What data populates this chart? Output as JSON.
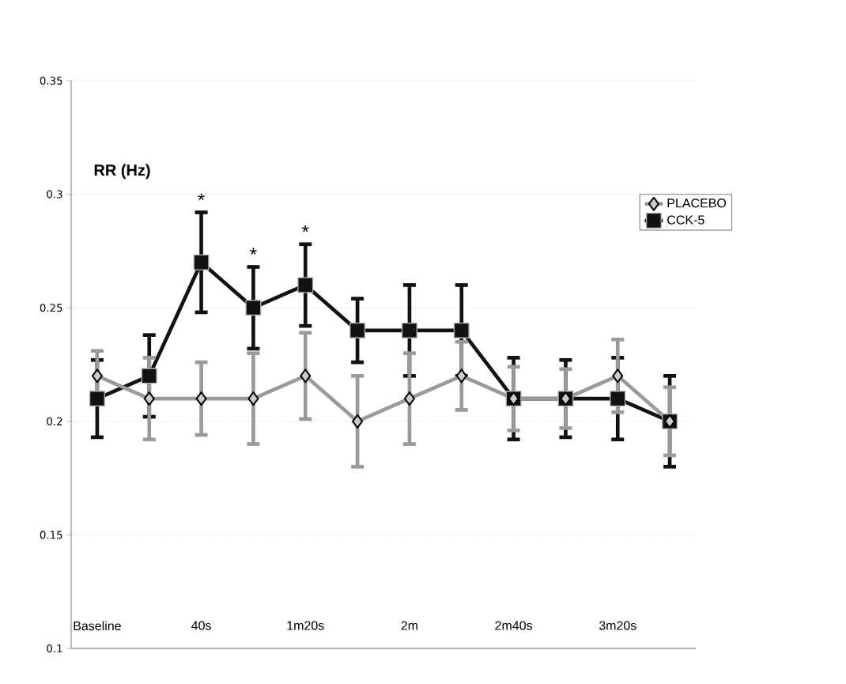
{
  "chart_data": {
    "type": "line",
    "ylabel": "RR (Hz)",
    "categories": [
      "Baseline",
      null,
      "40s",
      null,
      "1m20s",
      null,
      "2m",
      null,
      "2m40s",
      null,
      "3m20s",
      null
    ],
    "series": [
      {
        "name": "PLACEBO",
        "color": "#9a9a9a",
        "marker": "diamond",
        "values": [
          0.22,
          0.21,
          0.21,
          0.21,
          0.22,
          0.2,
          0.21,
          0.22,
          0.21,
          0.21,
          0.22,
          0.2
        ],
        "errors": [
          0.011,
          0.018,
          0.016,
          0.02,
          0.019,
          0.02,
          0.02,
          0.015,
          0.014,
          0.013,
          0.016,
          0.015
        ]
      },
      {
        "name": "CCK-5",
        "color": "#111111",
        "marker": "square",
        "values": [
          0.21,
          0.22,
          0.27,
          0.25,
          0.26,
          0.24,
          0.24,
          0.24,
          0.21,
          0.21,
          0.21,
          0.2
        ],
        "errors": [
          0.017,
          0.018,
          0.022,
          0.018,
          0.018,
          0.014,
          0.02,
          0.02,
          0.018,
          0.017,
          0.018,
          0.02
        ]
      }
    ],
    "ylim": [
      0.1,
      0.35
    ],
    "yticks": [
      0.1,
      0.15,
      0.2,
      0.25,
      0.3,
      0.35
    ],
    "grid": "y",
    "legend": "right",
    "line_style": "solid",
    "annotations": [
      "*",
      "*",
      "*"
    ]
  }
}
